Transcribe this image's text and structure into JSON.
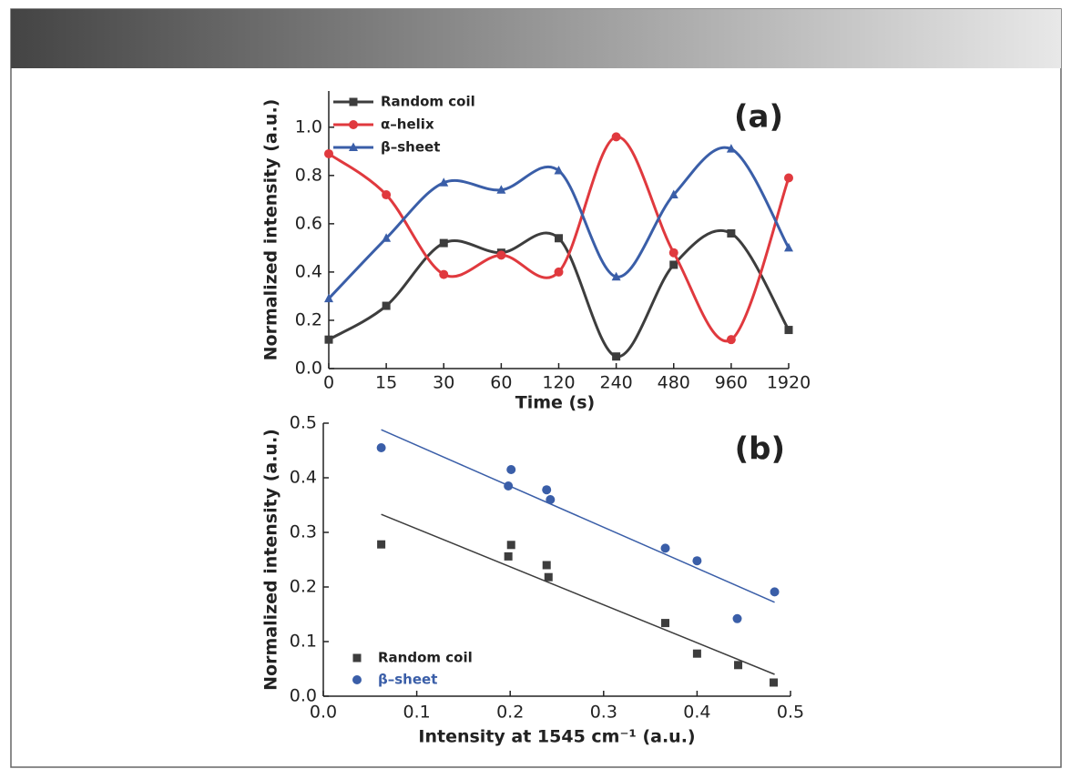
{
  "chart_data": [
    {
      "type": "line",
      "annotation": "(a)",
      "xlabel": "Time (s)",
      "ylabel": "Normalized intensity (a.u.)",
      "categories": [
        "0",
        "15",
        "30",
        "60",
        "120",
        "240",
        "480",
        "960",
        "1920"
      ],
      "ylim": [
        0,
        1.15
      ],
      "yticks": [
        {
          "value": 0,
          "label": "0.0"
        },
        0.2,
        0.4,
        0.6,
        0.8,
        {
          "value": 1,
          "label": "1.0"
        }
      ],
      "legend": "upper left",
      "smooth": true,
      "series": [
        {
          "name": "Random coil",
          "color": "#3d3d3d",
          "marker": "square",
          "values": [
            0.12,
            0.26,
            0.52,
            0.48,
            0.54,
            0.05,
            0.43,
            0.56,
            0.16
          ]
        },
        {
          "name": "α–helix",
          "color": "#e0393e",
          "marker": "circle",
          "values": [
            0.89,
            0.72,
            0.39,
            0.47,
            0.4,
            0.96,
            0.48,
            0.12,
            0.79
          ]
        },
        {
          "name": "β–sheet",
          "color": "#3a5ea8",
          "marker": "triangle",
          "values": [
            0.29,
            0.54,
            0.77,
            0.74,
            0.82,
            0.38,
            0.72,
            0.91,
            0.5
          ]
        }
      ]
    },
    {
      "type": "scatter",
      "annotation": "(b)",
      "xlabel": "Intensity at 1545 cm⁻¹ (a.u.)",
      "ylabel": "Normalized intensity (a.u.)",
      "xlim": [
        0,
        0.5
      ],
      "ylim": [
        0,
        0.5
      ],
      "xticks": [
        {
          "value": 0,
          "label": "0.0"
        },
        0.1,
        0.2,
        0.3,
        0.4,
        0.5
      ],
      "yticks": [
        {
          "value": 0,
          "label": "0.0"
        },
        0.1,
        0.2,
        0.3,
        0.4,
        0.5
      ],
      "legend": "lower left",
      "series": [
        {
          "name": "Random coil",
          "color": "#3d3d3d",
          "marker": "square",
          "x": [
            0.062,
            0.198,
            0.201,
            0.239,
            0.241,
            0.366,
            0.4,
            0.444,
            0.482
          ],
          "values": [
            0.278,
            0.256,
            0.277,
            0.24,
            0.218,
            0.134,
            0.078,
            0.057,
            0.025
          ],
          "fit": {
            "x": [
              0.062,
              0.483
            ],
            "values": [
              0.333,
              0.04
            ]
          }
        },
        {
          "name": "β–sheet",
          "color": "#3a5ea8",
          "marker": "circle",
          "x": [
            0.062,
            0.198,
            0.201,
            0.239,
            0.243,
            0.366,
            0.4,
            0.443,
            0.483
          ],
          "values": [
            0.455,
            0.385,
            0.415,
            0.378,
            0.36,
            0.271,
            0.248,
            0.142,
            0.191
          ],
          "fit": {
            "x": [
              0.062,
              0.483
            ],
            "values": [
              0.488,
              0.172
            ]
          }
        }
      ]
    }
  ]
}
